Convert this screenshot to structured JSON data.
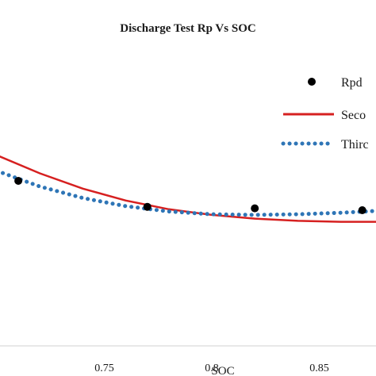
{
  "chart_data": {
    "type": "scatter",
    "title": "Discharge Test Rp Vs SOC",
    "xlabel": "SOC",
    "ylabel": "",
    "x_ticks": [
      "0.75",
      "0.8",
      "0.85"
    ],
    "grid": false,
    "legend_position": "top-right",
    "series": [
      {
        "name": "Rpd",
        "kind": "scatter",
        "color": "#000000",
        "points": [
          {
            "x": 0.71,
            "y": 0.0528
          },
          {
            "x": 0.77,
            "y": 0.0445
          },
          {
            "x": 0.82,
            "y": 0.044
          },
          {
            "x": 0.87,
            "y": 0.0434
          }
        ]
      },
      {
        "name": "Seco",
        "kind": "line",
        "style": "solid",
        "color": "#d62020",
        "points": [
          {
            "x": 0.7,
            "y": 0.061
          },
          {
            "x": 0.72,
            "y": 0.0552
          },
          {
            "x": 0.74,
            "y": 0.0503
          },
          {
            "x": 0.76,
            "y": 0.0465
          },
          {
            "x": 0.78,
            "y": 0.0437
          },
          {
            "x": 0.8,
            "y": 0.0419
          },
          {
            "x": 0.82,
            "y": 0.0407
          },
          {
            "x": 0.84,
            "y": 0.04
          },
          {
            "x": 0.86,
            "y": 0.0397
          },
          {
            "x": 0.88,
            "y": 0.0397
          },
          {
            "x": 0.9,
            "y": 0.0397
          }
        ]
      },
      {
        "name": "Thirc",
        "kind": "line",
        "style": "dotted",
        "color": "#2e75b6",
        "points": [
          {
            "x": 0.7,
            "y": 0.056
          },
          {
            "x": 0.72,
            "y": 0.051
          },
          {
            "x": 0.74,
            "y": 0.0473
          },
          {
            "x": 0.76,
            "y": 0.0447
          },
          {
            "x": 0.78,
            "y": 0.043
          },
          {
            "x": 0.8,
            "y": 0.0421
          },
          {
            "x": 0.82,
            "y": 0.0419
          },
          {
            "x": 0.84,
            "y": 0.0421
          },
          {
            "x": 0.86,
            "y": 0.0426
          },
          {
            "x": 0.88,
            "y": 0.0433
          },
          {
            "x": 0.9,
            "y": 0.0443
          }
        ]
      }
    ],
    "xlim": [
      0.7,
      0.9
    ],
    "ylim": [
      0.0,
      0.1
    ]
  }
}
